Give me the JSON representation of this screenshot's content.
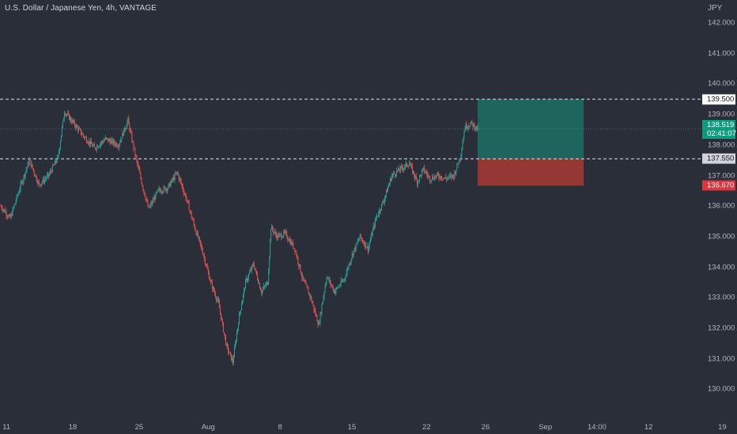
{
  "header": {
    "title": "U.S. Dollar / Japanese Yen, 4h, VANTAGE"
  },
  "axis": {
    "currency": "JPY"
  },
  "colors": {
    "background": "#2a2e39",
    "up": "#26a69a",
    "down": "#ef5350",
    "profit_zone": "#1e655d",
    "loss_zone": "#953834",
    "current_price_line": "#26a69a"
  },
  "price_tags": {
    "target": "139.500",
    "current": "138.519",
    "countdown": "02:41:07",
    "entry": "137.550",
    "stop": "136.670"
  },
  "chart_data": {
    "type": "candlestick",
    "title": "U.S. Dollar / Japanese Yen, 4h, VANTAGE",
    "ylabel": "JPY",
    "ylim": [
      129.6,
      142.6
    ],
    "y_ticks": [
      "142.000",
      "141.000",
      "140.000",
      "139.000",
      "138.000",
      "137.000",
      "136.000",
      "135.000",
      "134.000",
      "133.000",
      "132.000",
      "131.000",
      "130.000"
    ],
    "x_ticks": [
      "11",
      "18",
      "25",
      "Aug",
      "8",
      "15",
      "22",
      "26",
      "Sep",
      "14:00",
      "12",
      "19"
    ],
    "x_tick_bar_index": [
      6,
      78,
      150,
      225,
      303,
      381,
      462,
      526,
      591,
      647,
      703,
      783
    ],
    "horizontal_lines": [
      {
        "value": 139.5,
        "style": "dashed"
      },
      {
        "value": 137.55,
        "style": "dashed"
      }
    ],
    "current_price": 138.519,
    "position": {
      "type": "long",
      "entry": 137.55,
      "target": 139.5,
      "stop": 136.67,
      "start_bar": 563,
      "end_bar": 697
    },
    "path_anchors": [
      [
        0,
        136.0
      ],
      [
        12,
        135.6
      ],
      [
        24,
        136.6
      ],
      [
        36,
        137.5
      ],
      [
        48,
        136.7
      ],
      [
        60,
        137.0
      ],
      [
        72,
        137.6
      ],
      [
        80,
        139.1
      ],
      [
        92,
        138.7
      ],
      [
        104,
        138.3
      ],
      [
        118,
        137.9
      ],
      [
        132,
        138.2
      ],
      [
        148,
        138.0
      ],
      [
        160,
        138.8
      ],
      [
        168,
        137.8
      ],
      [
        178,
        136.7
      ],
      [
        186,
        135.9
      ],
      [
        198,
        136.5
      ],
      [
        210,
        136.6
      ],
      [
        222,
        137.1
      ],
      [
        234,
        136.2
      ],
      [
        244,
        135.3
      ],
      [
        254,
        134.5
      ],
      [
        264,
        133.5
      ],
      [
        274,
        132.8
      ],
      [
        284,
        131.4
      ],
      [
        292,
        130.9
      ],
      [
        300,
        132.4
      ],
      [
        308,
        133.5
      ],
      [
        318,
        134.1
      ],
      [
        328,
        133.2
      ],
      [
        336,
        133.5
      ],
      [
        340,
        135.3
      ],
      [
        348,
        135.0
      ],
      [
        358,
        135.1
      ],
      [
        370,
        134.6
      ],
      [
        380,
        133.6
      ],
      [
        390,
        133.0
      ],
      [
        400,
        132.1
      ],
      [
        410,
        133.7
      ],
      [
        420,
        133.2
      ],
      [
        432,
        133.6
      ],
      [
        442,
        134.4
      ],
      [
        452,
        135.0
      ],
      [
        462,
        134.6
      ],
      [
        472,
        135.6
      ],
      [
        482,
        136.2
      ],
      [
        492,
        137.0
      ],
      [
        502,
        137.2
      ],
      [
        514,
        137.4
      ],
      [
        524,
        136.8
      ],
      [
        532,
        137.2
      ],
      [
        540,
        136.9
      ],
      [
        550,
        137.0
      ],
      [
        560,
        136.9
      ],
      [
        570,
        137.0
      ],
      [
        578,
        137.6
      ],
      [
        584,
        138.6
      ],
      [
        592,
        138.7
      ],
      [
        600,
        138.52
      ]
    ],
    "bar_count": 601
  }
}
